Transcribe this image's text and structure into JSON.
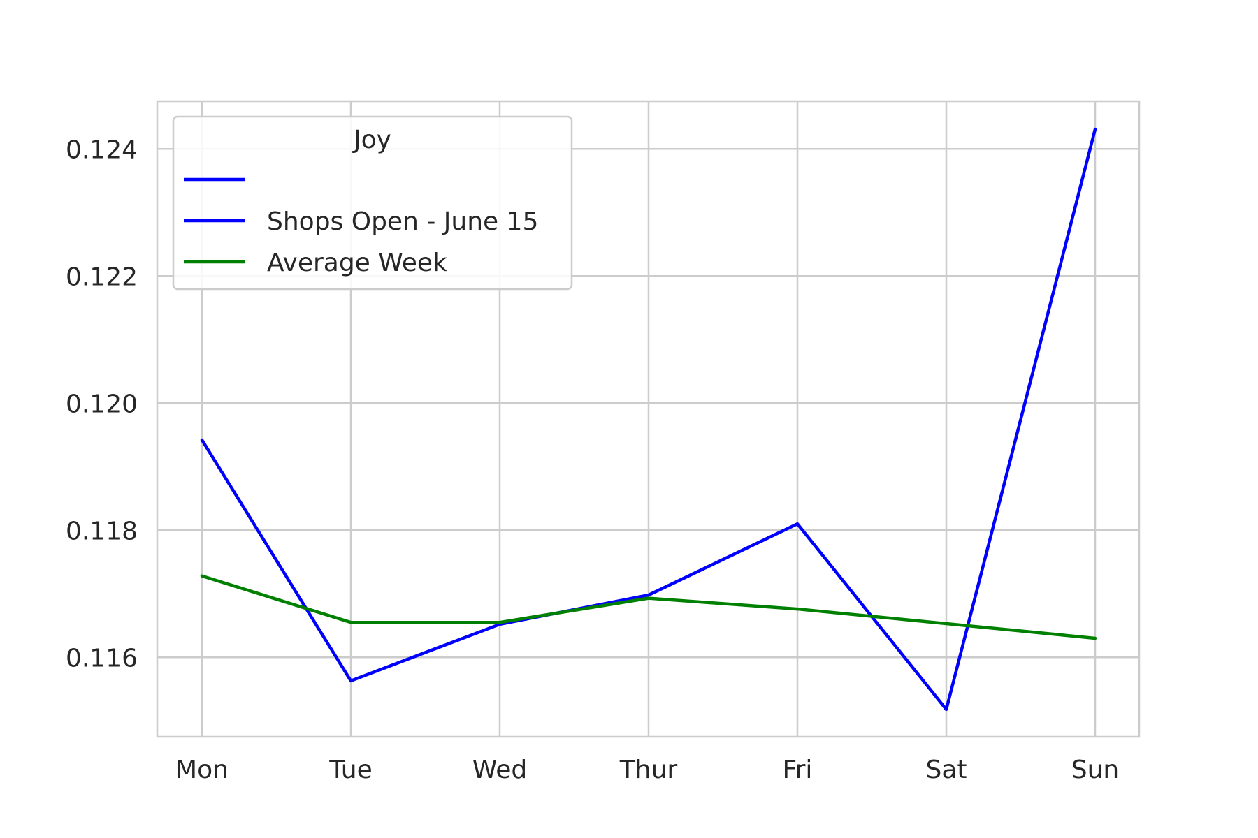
{
  "chart_data": {
    "type": "line",
    "title": "",
    "xlabel": "",
    "ylabel": "",
    "categories": [
      "Mon",
      "Tue",
      "Wed",
      "Thur",
      "Fri",
      "Sat",
      "Sun"
    ],
    "ylim": [
      0.11475,
      0.12475
    ],
    "yticks": [
      0.116,
      0.118,
      0.12,
      0.122,
      0.124
    ],
    "ytick_labels": [
      "0.116",
      "0.118",
      "0.120",
      "0.122",
      "0.124"
    ],
    "grid": true,
    "legend": {
      "title": "Joy",
      "placement": "upper-left",
      "entries": [
        {
          "label": "",
          "color": "#0000ff"
        },
        {
          "label": "Shops Open - June 15",
          "color": "#0000ff"
        },
        {
          "label": "Average Week",
          "color": "#008000"
        }
      ]
    },
    "series": [
      {
        "name": "Shops Open - June 15",
        "color": "#0000ff",
        "values": [
          0.11942,
          0.11563,
          0.11652,
          0.11698,
          0.1181,
          0.11518,
          0.12431
        ]
      },
      {
        "name": "Average Week",
        "color": "#008000",
        "values": [
          0.11728,
          0.11655,
          0.11655,
          0.11693,
          0.11676,
          0.11653,
          0.1163
        ]
      }
    ]
  }
}
